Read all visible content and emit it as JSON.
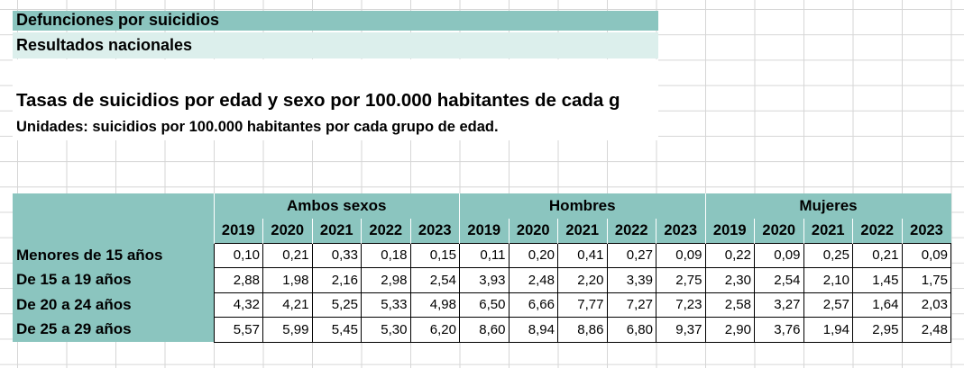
{
  "header": {
    "title": "Defunciones por suicidios",
    "subtitle": "Resultados nacionales",
    "table_title": "Tasas de suicidios por edad y sexo por 100.000 habitantes de cada g",
    "units": "Unidades: suicidios por 100.000 habitantes por cada grupo de edad."
  },
  "table": {
    "groups": [
      "Ambos sexos",
      "Hombres",
      "Mujeres"
    ],
    "years": [
      "2019",
      "2020",
      "2021",
      "2022",
      "2023"
    ],
    "rows": [
      {
        "label": "Menores de 15 años",
        "values": [
          "0,10",
          "0,21",
          "0,33",
          "0,18",
          "0,15",
          "0,11",
          "0,20",
          "0,41",
          "0,27",
          "0,09",
          "0,22",
          "0,09",
          "0,25",
          "0,21",
          "0,09"
        ]
      },
      {
        "label": "De 15 a 19 años",
        "values": [
          "2,88",
          "1,98",
          "2,16",
          "2,98",
          "2,54",
          "3,93",
          "2,48",
          "2,20",
          "3,39",
          "2,75",
          "2,30",
          "2,54",
          "2,10",
          "1,45",
          "1,75"
        ]
      },
      {
        "label": "De 20 a 24 años",
        "values": [
          "4,32",
          "4,21",
          "5,25",
          "5,33",
          "4,98",
          "6,50",
          "6,66",
          "7,77",
          "7,27",
          "7,23",
          "2,58",
          "3,27",
          "2,57",
          "1,64",
          "2,03"
        ]
      },
      {
        "label": "De 25 a 29 años",
        "values": [
          "5,57",
          "5,99",
          "5,45",
          "5,30",
          "6,20",
          "8,60",
          "8,94",
          "8,86",
          "6,80",
          "9,37",
          "2,90",
          "3,76",
          "1,94",
          "2,95",
          "2,48"
        ]
      }
    ]
  },
  "colors": {
    "header_fill": "#8bc5bf",
    "subtitle_fill": "#dcefec",
    "gridline": "#d6d6d6"
  }
}
